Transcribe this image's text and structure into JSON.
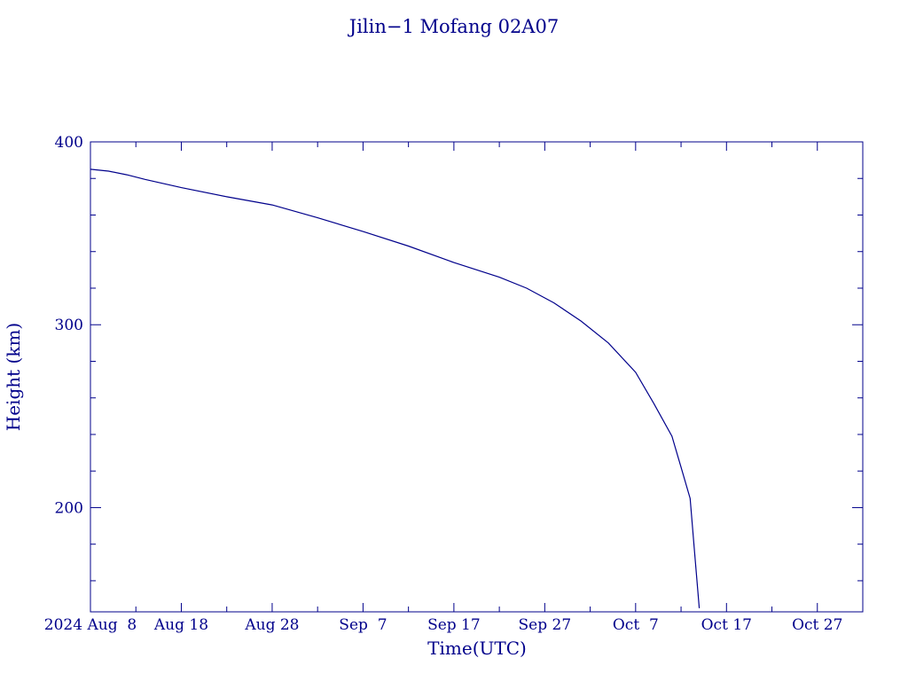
{
  "chart_data": {
    "type": "line",
    "title": "Jilin−1 Mofang 02A07",
    "xlabel": "Time(UTC)",
    "ylabel": "Height (km)",
    "color": "#00008b",
    "xlim": [
      "2024-08-08",
      "2024-11-01"
    ],
    "ylim": [
      143,
      400
    ],
    "x_ticks": [
      {
        "date": "2024-08-08",
        "label": "2024 Aug  8"
      },
      {
        "date": "2024-08-18",
        "label": "Aug 18"
      },
      {
        "date": "2024-08-28",
        "label": "Aug 28"
      },
      {
        "date": "2024-09-07",
        "label": "Sep  7"
      },
      {
        "date": "2024-09-17",
        "label": "Sep 17"
      },
      {
        "date": "2024-09-27",
        "label": "Sep 27"
      },
      {
        "date": "2024-10-07",
        "label": "Oct  7"
      },
      {
        "date": "2024-10-17",
        "label": "Oct 17"
      },
      {
        "date": "2024-10-27",
        "label": "Oct 27"
      }
    ],
    "y_ticks": [
      {
        "value": 200,
        "label": "200"
      },
      {
        "value": 300,
        "label": "300"
      },
      {
        "value": 400,
        "label": "400"
      }
    ],
    "series": [
      {
        "x": [
          "2024-08-08",
          "2024-08-10",
          "2024-08-12",
          "2024-08-14",
          "2024-08-18",
          "2024-08-23",
          "2024-08-28",
          "2024-09-02",
          "2024-09-07",
          "2024-09-12",
          "2024-09-17",
          "2024-09-22",
          "2024-09-25",
          "2024-09-28",
          "2024-10-01",
          "2024-10-04",
          "2024-10-07",
          "2024-10-09",
          "2024-10-11",
          "2024-10-12",
          "2024-10-13",
          "2024-10-13",
          "2024-10-14"
        ],
        "y": [
          385,
          384,
          382,
          379.5,
          375,
          370,
          365.5,
          358.5,
          351,
          343,
          334,
          326,
          320,
          312,
          302,
          290,
          274,
          257,
          239,
          222,
          205,
          178,
          145
        ]
      }
    ]
  }
}
